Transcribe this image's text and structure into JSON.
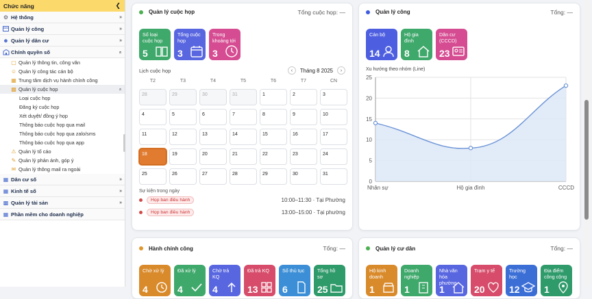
{
  "sidebar": {
    "header": "Chức năng",
    "items": [
      {
        "label": "Hệ thống"
      },
      {
        "label": "Quản lý công"
      },
      {
        "label": "Quản lý dân cư"
      },
      {
        "label": "Chính quyền số"
      }
    ],
    "subitems": [
      {
        "label": "Quản lý thông tin, công văn"
      },
      {
        "label": "Quản lý công tác cán bộ"
      },
      {
        "label": "Trung tâm dịch vụ hành chính công"
      },
      {
        "label": "Quản lý cuộc họp"
      }
    ],
    "meeting_children": [
      {
        "label": "Loại cuộc họp"
      },
      {
        "label": "Đăng ký cuộc họp"
      },
      {
        "label": "Xét duyệt/ đồng ý họp"
      },
      {
        "label": "Thông báo cuộc họp qua mail"
      },
      {
        "label": "Thông báo cuộc họp qua zalo/sms"
      },
      {
        "label": "Thông báo cuộc họp qua app"
      }
    ],
    "subitems_after": [
      {
        "label": "Quản lý tố cáo"
      },
      {
        "label": "Quản lý phản ánh, góp ý"
      },
      {
        "label": "Quản lý thông mail ra ngoài"
      }
    ],
    "items_after": [
      {
        "label": "Dân cư số"
      },
      {
        "label": "Kinh tế số"
      },
      {
        "label": "Quản lý tài sản"
      },
      {
        "label": "Phần mềm cho doanh nghiệp"
      }
    ]
  },
  "meeting_panel": {
    "title": "Quản lý cuộc họp",
    "total": "Tổng cuộc họp: —",
    "dot_color": "#4caf50",
    "tiles": [
      {
        "label": "Số loại cuộc họp",
        "value": "5",
        "color": "#3fa86b",
        "icon": "book-icon"
      },
      {
        "label": "Tổng cuộc họp",
        "value": "3",
        "color": "#5866e0",
        "icon": "calendar-icon"
      },
      {
        "label": "Trong khoảng tới",
        "value": "3",
        "color": "#d64c92",
        "icon": "clock-icon"
      }
    ],
    "calendar_label": "Lịch cuộc họp",
    "month": "Tháng 8 2025",
    "weekdays": [
      "T2",
      "T3",
      "T4",
      "T5",
      "T6",
      "T7",
      "CN"
    ],
    "days": [
      {
        "d": "28",
        "m": true
      },
      {
        "d": "29",
        "m": true
      },
      {
        "d": "30",
        "m": true
      },
      {
        "d": "31",
        "m": true
      },
      {
        "d": "1"
      },
      {
        "d": "2"
      },
      {
        "d": "3"
      },
      {
        "d": "4"
      },
      {
        "d": "5"
      },
      {
        "d": "6"
      },
      {
        "d": "7"
      },
      {
        "d": "8"
      },
      {
        "d": "9"
      },
      {
        "d": "10"
      },
      {
        "d": "11"
      },
      {
        "d": "12"
      },
      {
        "d": "13"
      },
      {
        "d": "14"
      },
      {
        "d": "15"
      },
      {
        "d": "16"
      },
      {
        "d": "17"
      },
      {
        "d": "18",
        "t": true
      },
      {
        "d": "19"
      },
      {
        "d": "20"
      },
      {
        "d": "21"
      },
      {
        "d": "22"
      },
      {
        "d": "23"
      },
      {
        "d": "24"
      },
      {
        "d": "25"
      },
      {
        "d": "26"
      },
      {
        "d": "27"
      },
      {
        "d": "28"
      },
      {
        "d": "29"
      },
      {
        "d": "30"
      },
      {
        "d": "31"
      }
    ],
    "events_title": "Sự kiện trong ngày",
    "events": [
      {
        "tag": "Họp ban điều hành",
        "time": "10:00–11:30 · Tại Phường"
      },
      {
        "tag": "Họp ban điều hành",
        "time": "13:00–15:00 · Tại phường"
      }
    ]
  },
  "cong_panel": {
    "title": "Quản lý công",
    "total": "Tổng: —",
    "dot_color": "#3f5be0",
    "tiles": [
      {
        "label": "Cán bộ",
        "value": "14",
        "color": "#4d5fe0",
        "icon": "user-icon"
      },
      {
        "label": "Hộ gia đình",
        "value": "8",
        "color": "#3fa86b",
        "icon": "house-icon"
      },
      {
        "label": "Dân cư (CCCD)",
        "value": "23",
        "color": "#d64c92",
        "icon": "id-card-icon"
      }
    ],
    "chart_title": "Xu hướng theo nhóm (Line)"
  },
  "chart_data": {
    "type": "line",
    "title": "Xu hướng theo nhóm (Line)",
    "categories": [
      "Nhân sự",
      "Hộ gia đình",
      "CCCD"
    ],
    "values": [
      14,
      8,
      23
    ],
    "ylim": [
      0,
      25
    ],
    "yticks": [
      0,
      5,
      10,
      15,
      20,
      25
    ],
    "grid": true,
    "line_color": "#6b93d6",
    "fill_color": "#dde7f7"
  },
  "hanhchinh_panel": {
    "title": "Hành chính công",
    "total": "Tổng: —",
    "dot_color": "#e0962b",
    "tiles": [
      {
        "label": "Chờ xử lý",
        "value": "4",
        "color": "#d98a2b",
        "icon": "clock-icon"
      },
      {
        "label": "Đã xử lý",
        "value": "4",
        "color": "#3fa86b",
        "icon": "check-icon"
      },
      {
        "label": "Chờ trả KQ",
        "value": "4",
        "color": "#5866e0",
        "icon": "arrow-up-icon"
      },
      {
        "label": "Đã trả KQ",
        "value": "13",
        "color": "#d64c6a",
        "icon": "grid-icon"
      },
      {
        "label": "Số thủ tục",
        "value": "6",
        "color": "#3c8fd6",
        "icon": "doc-icon"
      },
      {
        "label": "Tổng hồ sơ",
        "value": "25",
        "color": "#2f9a6a",
        "icon": "folder-icon"
      }
    ]
  },
  "cudan_panel": {
    "title": "Quản lý cư dân",
    "total": "Tổng: —",
    "dot_color": "#4caf50",
    "tiles": [
      {
        "label": "Hộ kinh doanh",
        "value": "1",
        "color": "#d98a2b",
        "icon": "shop-icon"
      },
      {
        "label": "Doanh nghiệp",
        "value": "1",
        "color": "#3fa86b",
        "icon": "building-icon"
      },
      {
        "label": "Nhà văn hóa phường",
        "value": "1",
        "color": "#5866e0",
        "icon": "home-icon"
      },
      {
        "label": "Trạm y tế",
        "value": "20",
        "color": "#d64c6a",
        "icon": "heart-icon"
      },
      {
        "label": "Trường học",
        "value": "12",
        "color": "#3c6fd6",
        "icon": "school-icon"
      },
      {
        "label": "Địa điểm công cộng",
        "value": "1",
        "color": "#2f9a6a",
        "icon": "pin-icon"
      }
    ]
  }
}
